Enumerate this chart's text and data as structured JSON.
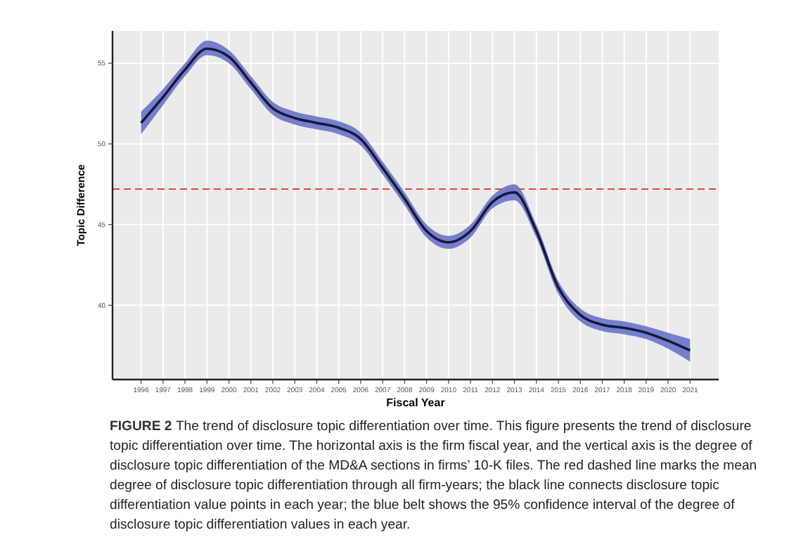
{
  "chart_data": {
    "type": "line",
    "xlabel": "Fiscal Year",
    "ylabel": "Topic Difference",
    "x": [
      1996,
      1997,
      1998,
      1999,
      2000,
      2001,
      2002,
      2003,
      2004,
      2005,
      2006,
      2007,
      2008,
      2009,
      2010,
      2011,
      2012,
      2013,
      2014,
      2015,
      2016,
      2017,
      2018,
      2019,
      2020,
      2021
    ],
    "series": [
      {
        "color": "#141a3c",
        "values": [
          51.3,
          52.9,
          54.6,
          55.9,
          55.4,
          53.8,
          52.2,
          51.6,
          51.3,
          51.0,
          50.3,
          48.5,
          46.6,
          44.6,
          43.9,
          44.6,
          46.4,
          47.0,
          44.6,
          41.1,
          39.4,
          38.8,
          38.6,
          38.3,
          37.8,
          37.2
        ],
        "lower": [
          50.6,
          52.4,
          54.2,
          55.5,
          55.0,
          53.4,
          51.8,
          51.2,
          50.9,
          50.6,
          49.9,
          48.1,
          46.2,
          44.2,
          43.5,
          44.2,
          46.0,
          46.5,
          44.2,
          40.7,
          39.0,
          38.4,
          38.2,
          37.9,
          37.3,
          36.5
        ],
        "upper": [
          52.0,
          53.4,
          55.0,
          56.4,
          55.8,
          54.2,
          52.6,
          52.0,
          51.7,
          51.4,
          50.7,
          48.9,
          47.0,
          45.0,
          44.3,
          45.0,
          46.8,
          47.5,
          45.0,
          41.5,
          39.8,
          39.2,
          39.0,
          38.7,
          38.3,
          37.9
        ]
      }
    ],
    "xlim": [
      1994.7,
      2022.3
    ],
    "ylim": [
      35.4,
      57
    ],
    "xticks": [
      1996,
      1997,
      1998,
      1999,
      2000,
      2001,
      2002,
      2003,
      2004,
      2005,
      2006,
      2007,
      2008,
      2009,
      2010,
      2011,
      2012,
      2013,
      2014,
      2015,
      2016,
      2017,
      2018,
      2019,
      2020,
      2021
    ],
    "yticks": [
      40,
      45,
      50,
      55
    ],
    "grid": true,
    "ref_lines": [
      {
        "axis": "y",
        "value": 47.2,
        "color": "#e0463c",
        "line_style": "dashed"
      }
    ],
    "annotations": [
      "FIGURE 2",
      "The trend of disclosure topic differentiation over time. This figure presents the trend of disclosure topic differentiation over time. The horizontal axis is the firm fiscal year, and the vertical axis is the degree of disclosure topic differentiation of the MD&A sections in firms’ 10-K files. The red dashed line marks the mean degree of disclosure topic differentiation through all firm-years; the black line connects disclosure topic differentiation value points in each year; the blue belt shows the 95% confidence interval of the degree of disclosure topic differentiation values in each year."
    ]
  }
}
